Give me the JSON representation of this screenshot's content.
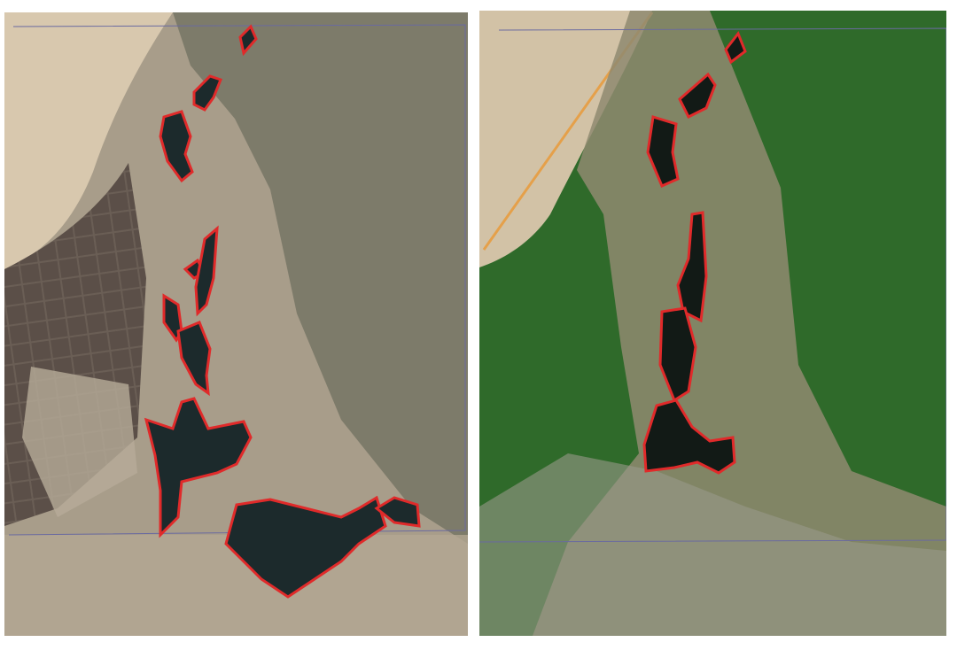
{
  "panels": [
    {
      "id": "left",
      "imagery": "satellite-arid",
      "outline_color": "#e02a2a"
    },
    {
      "id": "right",
      "imagery": "satellite-vegetated",
      "outline_color": "#e02a2a"
    }
  ],
  "colors": {
    "outline": "#e02a2a",
    "water": "#1c2a2c",
    "desert": "#d6c6ad",
    "arid_plain": "#a59a86",
    "vegetation_dark": "#5e6450",
    "vegetation_green": "#2f6a2a",
    "road": "#e5a04a",
    "frame_line": "#6a6aa0"
  }
}
